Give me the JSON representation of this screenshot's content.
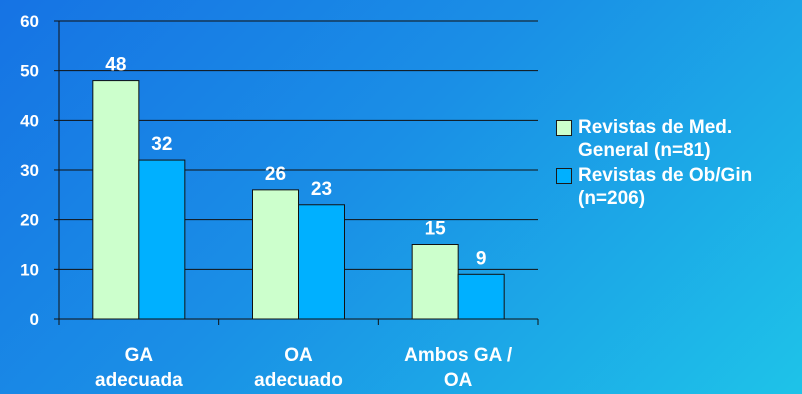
{
  "chart_data": {
    "type": "bar",
    "categories": [
      "GA\nadecuada",
      "OA\nadecuado",
      "Ambos GA /\nOA"
    ],
    "series": [
      {
        "name": "Revistas de Med.\nGeneral (n=81)",
        "values": [
          48,
          26,
          15
        ],
        "color": "#ccffcc"
      },
      {
        "name": "Revistas de Ob/Gin\n(n=206)",
        "values": [
          32,
          23,
          9
        ],
        "color": "#00b0ff"
      }
    ],
    "ylim": [
      0,
      60
    ],
    "yticks": [
      0,
      10,
      20,
      30,
      40,
      50,
      60
    ],
    "grid": true,
    "legend": "right",
    "title": "",
    "xlabel": "",
    "ylabel": ""
  }
}
